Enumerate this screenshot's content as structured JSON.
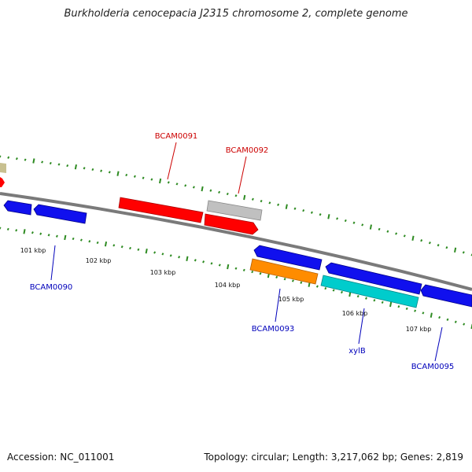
{
  "title": "Burkholderia cenocepacia J2315 chromosome 2, complete genome",
  "footer": {
    "accession": "Accession: NC_011001",
    "summary": "Topology: circular; Length: 3,217,062 bp; Genes: 2,819"
  },
  "colors": {
    "backbone": "#7a7a7a",
    "tick": "#2e8b22",
    "label_red": "#cc0000",
    "label_blue": "#0000bb",
    "gene_red": "#ff0000",
    "gene_blue": "#1010ee",
    "gene_orange": "#ff8c00",
    "gene_cyan": "#00cccc",
    "gene_gray": "#c0c0c0",
    "gene_khaki": "#c8c090"
  },
  "kbp_labels": [
    "101 kbp",
    "102 kbp",
    "103 kbp",
    "104 kbp",
    "105 kbp",
    "106 kbp",
    "107 kbp"
  ],
  "gene_labels": [
    "BCAM0091",
    "BCAM0092",
    "BCAM0090",
    "BCAM0093",
    "xylB",
    "BCAM0095"
  ]
}
